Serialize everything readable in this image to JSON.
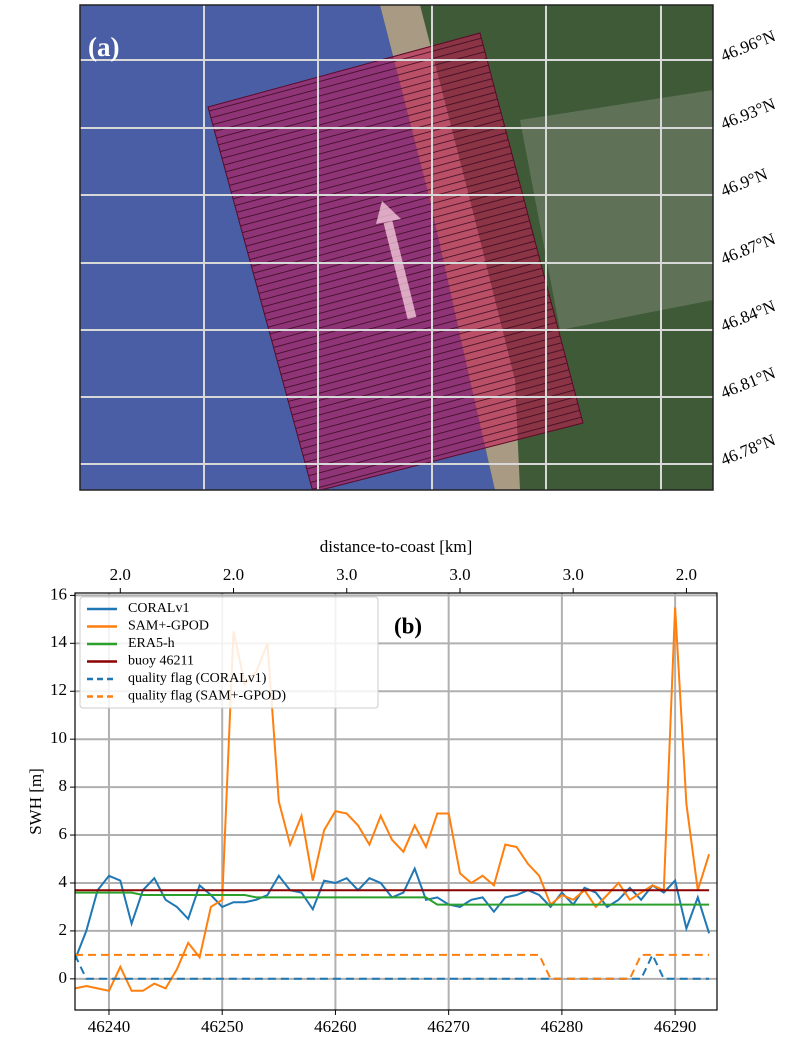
{
  "map": {
    "panel_label": "(a)",
    "lat_labels": [
      "46.96°N",
      "46.93°N",
      "46.9°N",
      "46.87°N",
      "46.84°N",
      "46.81°N",
      "46.78°N"
    ]
  },
  "chart_data": {
    "type": "line",
    "annotation": "(b)",
    "ylabel": "SWH [m]",
    "x2label": "distance-to-coast [km]",
    "xlim": [
      46237,
      46293.7
    ],
    "ylim": [
      -1.3,
      16.1
    ],
    "xticks": [
      46240,
      46250,
      46260,
      46270,
      46280,
      46290
    ],
    "yticks": [
      0,
      2,
      4,
      6,
      8,
      10,
      12,
      14,
      16
    ],
    "x2ticks": [
      {
        "value": 46241,
        "label": "2.0"
      },
      {
        "value": 46251,
        "label": "2.0"
      },
      {
        "value": 46261,
        "label": "3.0"
      },
      {
        "value": 46271,
        "label": "3.0"
      },
      {
        "value": 46281,
        "label": "3.0"
      },
      {
        "value": 46291,
        "label": "2.0"
      }
    ],
    "grid": true,
    "legend": "upper left",
    "x": [
      46237,
      46238,
      46239,
      46240,
      46241,
      46242,
      46243,
      46244,
      46245,
      46246,
      46247,
      46248,
      46249,
      46250,
      46251,
      46252,
      46253,
      46254,
      46255,
      46256,
      46257,
      46258,
      46259,
      46260,
      46261,
      46262,
      46263,
      46264,
      46265,
      46266,
      46267,
      46268,
      46269,
      46270,
      46271,
      46272,
      46273,
      46274,
      46275,
      46276,
      46277,
      46278,
      46279,
      46280,
      46281,
      46282,
      46283,
      46284,
      46285,
      46286,
      46287,
      46288,
      46289,
      46290,
      46291,
      46292,
      46293
    ],
    "series": [
      {
        "name": "CORALv1",
        "color": "#1f77b4",
        "linestyle": "solid",
        "values": [
          0.8,
          2.0,
          3.7,
          4.3,
          4.1,
          2.3,
          3.7,
          4.2,
          3.3,
          3.0,
          2.5,
          3.9,
          3.5,
          3.0,
          3.2,
          3.2,
          3.3,
          3.5,
          4.3,
          3.7,
          3.6,
          2.9,
          4.1,
          4.0,
          4.2,
          3.7,
          4.2,
          4.0,
          3.4,
          3.6,
          4.6,
          3.3,
          3.4,
          3.1,
          3.0,
          3.3,
          3.4,
          2.8,
          3.4,
          3.5,
          3.7,
          3.5,
          3.0,
          3.6,
          3.1,
          3.8,
          3.6,
          3.0,
          3.3,
          3.8,
          3.3,
          3.9,
          3.6,
          4.1,
          2.1,
          3.4,
          1.9
        ]
      },
      {
        "name": "SAM+-GPOD",
        "color": "#ff7f0e",
        "linestyle": "solid",
        "values": [
          -0.4,
          -0.3,
          -0.4,
          -0.5,
          0.5,
          -0.5,
          -0.5,
          -0.2,
          -0.4,
          0.4,
          1.5,
          0.9,
          3.0,
          3.3,
          14.5,
          12.3,
          12.8,
          14.0,
          7.4,
          5.6,
          6.8,
          4.1,
          6.2,
          7.0,
          6.9,
          6.4,
          5.6,
          6.8,
          5.8,
          5.3,
          6.4,
          5.5,
          6.9,
          6.9,
          4.4,
          4.0,
          4.3,
          3.9,
          5.6,
          5.5,
          4.8,
          4.3,
          3.1,
          3.5,
          3.3,
          3.7,
          3.0,
          3.5,
          4.0,
          3.3,
          3.6,
          3.9,
          3.7,
          15.5,
          7.3,
          3.7,
          5.2
        ]
      },
      {
        "name": "ERA5-h",
        "color": "#2ca02c",
        "linestyle": "solid",
        "values": [
          3.6,
          3.6,
          3.6,
          3.6,
          3.6,
          3.6,
          3.5,
          3.5,
          3.5,
          3.5,
          3.5,
          3.5,
          3.5,
          3.5,
          3.5,
          3.5,
          3.4,
          3.4,
          3.4,
          3.4,
          3.4,
          3.4,
          3.4,
          3.4,
          3.4,
          3.4,
          3.4,
          3.4,
          3.4,
          3.4,
          3.4,
          3.4,
          3.1,
          3.1,
          3.1,
          3.1,
          3.1,
          3.1,
          3.1,
          3.1,
          3.1,
          3.1,
          3.1,
          3.1,
          3.1,
          3.1,
          3.1,
          3.1,
          3.1,
          3.1,
          3.1,
          3.1,
          3.1,
          3.1,
          3.1,
          3.1,
          3.1
        ]
      },
      {
        "name": "buoy 46211",
        "color": "#8b0000",
        "linestyle": "solid",
        "values": [
          3.7,
          3.7,
          3.7,
          3.7,
          3.7,
          3.7,
          3.7,
          3.7,
          3.7,
          3.7,
          3.7,
          3.7,
          3.7,
          3.7,
          3.7,
          3.7,
          3.7,
          3.7,
          3.7,
          3.7,
          3.7,
          3.7,
          3.7,
          3.7,
          3.7,
          3.7,
          3.7,
          3.7,
          3.7,
          3.7,
          3.7,
          3.7,
          3.7,
          3.7,
          3.7,
          3.7,
          3.7,
          3.7,
          3.7,
          3.7,
          3.7,
          3.7,
          3.7,
          3.7,
          3.7,
          3.7,
          3.7,
          3.7,
          3.7,
          3.7,
          3.7,
          3.7,
          3.7,
          3.7,
          3.7,
          3.7,
          3.7
        ]
      },
      {
        "name": "quality flag (CORALv1)",
        "color": "#1f77b4",
        "linestyle": "dashed",
        "values": [
          1,
          0,
          0,
          0,
          0,
          0,
          0,
          0,
          0,
          0,
          0,
          0,
          0,
          0,
          0,
          0,
          0,
          0,
          0,
          0,
          0,
          0,
          0,
          0,
          0,
          0,
          0,
          0,
          0,
          0,
          0,
          0,
          0,
          0,
          0,
          0,
          0,
          0,
          0,
          0,
          0,
          0,
          0,
          0,
          0,
          0,
          0,
          0,
          0,
          0,
          0,
          1,
          0,
          0,
          0,
          0,
          0
        ]
      },
      {
        "name": "quality flag (SAM+-GPOD)",
        "color": "#ff7f0e",
        "linestyle": "dashed",
        "values": [
          1,
          1,
          1,
          1,
          1,
          1,
          1,
          1,
          1,
          1,
          1,
          1,
          1,
          1,
          1,
          1,
          1,
          1,
          1,
          1,
          1,
          1,
          1,
          1,
          1,
          1,
          1,
          1,
          1,
          1,
          1,
          1,
          1,
          1,
          1,
          1,
          1,
          1,
          1,
          1,
          1,
          1,
          0,
          0,
          0,
          0,
          0,
          0,
          0,
          0,
          1,
          1,
          1,
          1,
          1,
          1,
          1
        ]
      }
    ]
  }
}
